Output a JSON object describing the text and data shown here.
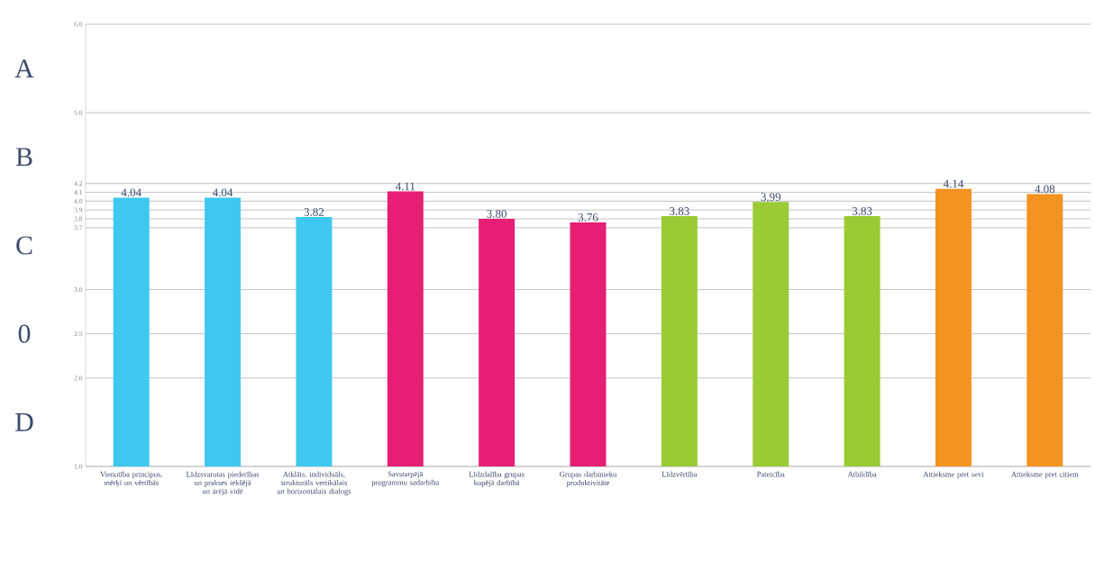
{
  "chart_data": {
    "type": "bar",
    "categories": [
      "Vienotība principos, mērķī un vērtībās",
      "Līdzsvarotas piederības un prakses iekšējā un ārējā vidē",
      "Atklāts, individuāls, strukturāls vertikālais un horizontālais dialogs",
      "Savstarpējā programmu sadarbība",
      "Līdzdalība grupas kopējā darbībā",
      "Grupas darbinieku produktivitāte",
      "Līdzvērtība",
      "Pateicība",
      "Atbildība",
      "Attieksme pret sevi",
      "Attieksme pret citiem"
    ],
    "values": [
      4.04,
      4.04,
      3.82,
      4.11,
      3.8,
      3.76,
      3.83,
      3.99,
      3.83,
      4.14,
      4.08
    ],
    "value_labels": [
      "4.04",
      "4.04",
      "3.82",
      "4.11",
      "3.80",
      "3.76",
      "3.83",
      "3.99",
      "3.83",
      "4.14",
      "4.08"
    ],
    "colors": [
      "#3ec8f0",
      "#3ec8f0",
      "#3ec8f0",
      "#e61e74",
      "#e61e74",
      "#e61e74",
      "#9acb34",
      "#9acb34",
      "#9acb34",
      "#f39322",
      "#f39322"
    ],
    "ylim": [
      1.0,
      6.0
    ],
    "yticks": [
      {
        "value": 1.0,
        "label": "1.0"
      },
      {
        "value": 2.0,
        "label": "2.0"
      },
      {
        "value": 2.5,
        "label": "2.5"
      },
      {
        "value": 3.0,
        "label": "3.0"
      },
      {
        "value": 3.7,
        "label": "3.7"
      },
      {
        "value": 3.8,
        "label": "3.8"
      },
      {
        "value": 3.9,
        "label": "3.9"
      },
      {
        "value": 4.0,
        "label": "4.0"
      },
      {
        "value": 4.1,
        "label": "4.1"
      },
      {
        "value": 4.2,
        "label": "4.2"
      },
      {
        "value": 5.0,
        "label": "5.0"
      },
      {
        "value": 6.0,
        "label": "6.0"
      }
    ],
    "grid": "y",
    "annotations": [
      "A",
      "B",
      "C",
      "0",
      "D"
    ]
  }
}
